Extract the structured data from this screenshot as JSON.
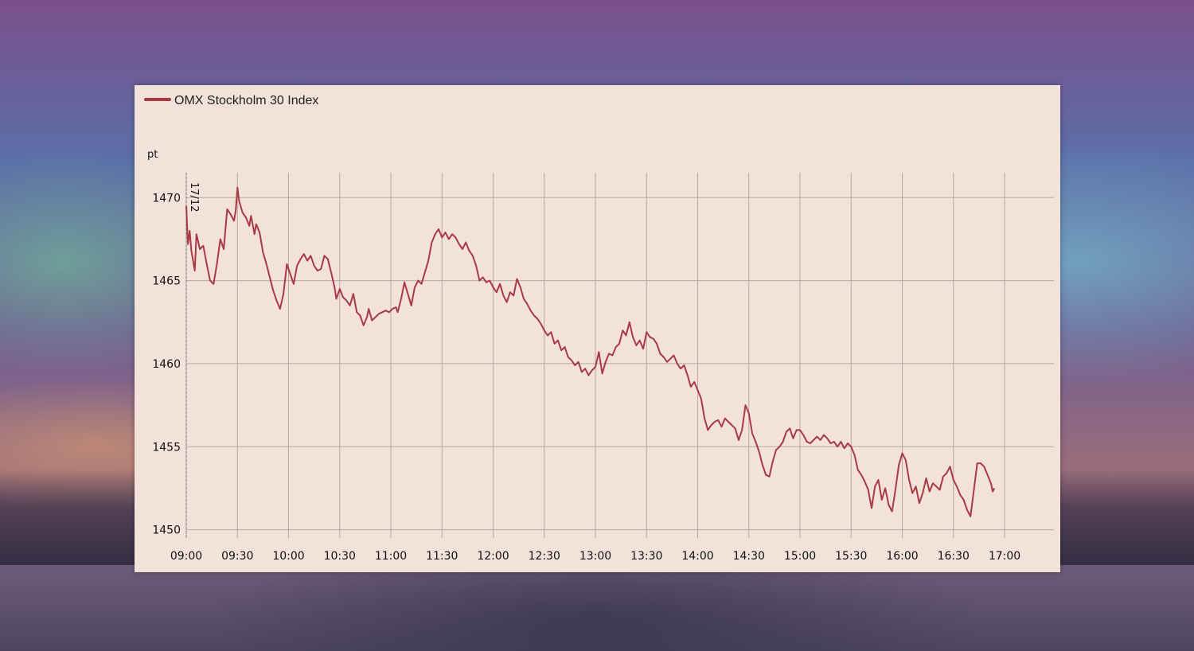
{
  "chart_data": {
    "type": "line",
    "legend": [
      "OMX Stockholm 30 Index"
    ],
    "ylabel": "pt",
    "date_marker": "17/12",
    "x_ticks": [
      "09:00",
      "09:30",
      "10:00",
      "10:30",
      "11:00",
      "11:30",
      "12:00",
      "12:30",
      "13:00",
      "13:30",
      "14:00",
      "14:30",
      "15:00",
      "15:30",
      "16:00",
      "16:30",
      "17:00"
    ],
    "y_ticks": [
      1450,
      1455,
      1460,
      1465,
      1470
    ],
    "ylim": [
      1449.5,
      1471.5
    ],
    "xlim": [
      "09:00",
      "17:00"
    ],
    "grid": true,
    "legend_position": "top-left",
    "line_color": "#a83945",
    "series": [
      {
        "name": "OMX Stockholm 30 Index",
        "points": [
          [
            "09:00",
            1469.5
          ],
          [
            "09:01",
            1467.2
          ],
          [
            "09:02",
            1468.0
          ],
          [
            "09:03",
            1466.8
          ],
          [
            "09:05",
            1465.6
          ],
          [
            "09:06",
            1467.8
          ],
          [
            "09:08",
            1466.9
          ],
          [
            "09:10",
            1467.1
          ],
          [
            "09:12",
            1466.0
          ],
          [
            "09:14",
            1465.0
          ],
          [
            "09:16",
            1464.8
          ],
          [
            "09:18",
            1466.0
          ],
          [
            "09:20",
            1467.5
          ],
          [
            "09:22",
            1466.9
          ],
          [
            "09:24",
            1469.3
          ],
          [
            "09:26",
            1469.0
          ],
          [
            "09:28",
            1468.6
          ],
          [
            "09:29",
            1469.2
          ],
          [
            "09:30",
            1470.6
          ],
          [
            "09:31",
            1469.8
          ],
          [
            "09:33",
            1469.1
          ],
          [
            "09:35",
            1468.8
          ],
          [
            "09:37",
            1468.3
          ],
          [
            "09:38",
            1468.9
          ],
          [
            "09:40",
            1467.8
          ],
          [
            "09:41",
            1468.4
          ],
          [
            "09:43",
            1467.9
          ],
          [
            "09:45",
            1466.7
          ],
          [
            "09:47",
            1466.0
          ],
          [
            "09:49",
            1465.2
          ],
          [
            "09:51",
            1464.4
          ],
          [
            "09:53",
            1463.8
          ],
          [
            "09:55",
            1463.3
          ],
          [
            "09:57",
            1464.2
          ],
          [
            "09:59",
            1466.0
          ],
          [
            "10:01",
            1465.4
          ],
          [
            "10:03",
            1464.8
          ],
          [
            "10:05",
            1465.9
          ],
          [
            "10:07",
            1466.3
          ],
          [
            "10:09",
            1466.6
          ],
          [
            "10:11",
            1466.2
          ],
          [
            "10:13",
            1466.5
          ],
          [
            "10:15",
            1465.9
          ],
          [
            "10:17",
            1465.6
          ],
          [
            "10:19",
            1465.7
          ],
          [
            "10:21",
            1466.5
          ],
          [
            "10:23",
            1466.3
          ],
          [
            "10:25",
            1465.5
          ],
          [
            "10:27",
            1464.6
          ],
          [
            "10:28",
            1463.9
          ],
          [
            "10:30",
            1464.5
          ],
          [
            "10:32",
            1464.0
          ],
          [
            "10:34",
            1463.8
          ],
          [
            "10:36",
            1463.5
          ],
          [
            "10:38",
            1464.2
          ],
          [
            "10:40",
            1463.1
          ],
          [
            "10:42",
            1462.9
          ],
          [
            "10:44",
            1462.3
          ],
          [
            "10:46",
            1462.8
          ],
          [
            "10:47",
            1463.3
          ],
          [
            "10:49",
            1462.6
          ],
          [
            "10:51",
            1462.8
          ],
          [
            "10:53",
            1463.0
          ],
          [
            "10:55",
            1463.1
          ],
          [
            "10:57",
            1463.2
          ],
          [
            "10:59",
            1463.1
          ],
          [
            "11:01",
            1463.3
          ],
          [
            "11:03",
            1463.4
          ],
          [
            "11:04",
            1463.1
          ],
          [
            "11:06",
            1463.9
          ],
          [
            "11:08",
            1464.9
          ],
          [
            "11:10",
            1464.2
          ],
          [
            "11:12",
            1463.5
          ],
          [
            "11:14",
            1464.6
          ],
          [
            "11:16",
            1465.0
          ],
          [
            "11:18",
            1464.8
          ],
          [
            "11:20",
            1465.5
          ],
          [
            "11:22",
            1466.2
          ],
          [
            "11:24",
            1467.3
          ],
          [
            "11:26",
            1467.8
          ],
          [
            "11:28",
            1468.1
          ],
          [
            "11:30",
            1467.6
          ],
          [
            "11:32",
            1467.9
          ],
          [
            "11:34",
            1467.5
          ],
          [
            "11:36",
            1467.8
          ],
          [
            "11:38",
            1467.6
          ],
          [
            "11:40",
            1467.2
          ],
          [
            "11:42",
            1466.9
          ],
          [
            "11:44",
            1467.3
          ],
          [
            "11:46",
            1466.8
          ],
          [
            "11:48",
            1466.5
          ],
          [
            "11:50",
            1465.9
          ],
          [
            "11:52",
            1465.0
          ],
          [
            "11:54",
            1465.2
          ],
          [
            "11:56",
            1464.9
          ],
          [
            "11:58",
            1465.0
          ],
          [
            "12:00",
            1464.6
          ],
          [
            "12:02",
            1464.3
          ],
          [
            "12:04",
            1464.8
          ],
          [
            "12:06",
            1464.1
          ],
          [
            "12:08",
            1463.7
          ],
          [
            "12:10",
            1464.3
          ],
          [
            "12:12",
            1464.1
          ],
          [
            "12:14",
            1465.1
          ],
          [
            "12:16",
            1464.6
          ],
          [
            "12:18",
            1463.9
          ],
          [
            "12:20",
            1463.6
          ],
          [
            "12:22",
            1463.2
          ],
          [
            "12:24",
            1462.9
          ],
          [
            "12:26",
            1462.7
          ],
          [
            "12:28",
            1462.4
          ],
          [
            "12:30",
            1462.0
          ],
          [
            "12:32",
            1461.7
          ],
          [
            "12:34",
            1461.9
          ],
          [
            "12:36",
            1461.2
          ],
          [
            "12:38",
            1461.4
          ],
          [
            "12:40",
            1460.8
          ],
          [
            "12:42",
            1461.0
          ],
          [
            "12:44",
            1460.4
          ],
          [
            "12:46",
            1460.2
          ],
          [
            "12:48",
            1459.9
          ],
          [
            "12:50",
            1460.1
          ],
          [
            "12:52",
            1459.5
          ],
          [
            "12:54",
            1459.7
          ],
          [
            "12:56",
            1459.3
          ],
          [
            "12:58",
            1459.6
          ],
          [
            "13:00",
            1459.8
          ],
          [
            "13:02",
            1460.7
          ],
          [
            "13:04",
            1459.4
          ],
          [
            "13:06",
            1460.1
          ],
          [
            "13:08",
            1460.6
          ],
          [
            "13:10",
            1460.5
          ],
          [
            "13:12",
            1461.0
          ],
          [
            "13:14",
            1461.2
          ],
          [
            "13:16",
            1462.0
          ],
          [
            "13:18",
            1461.7
          ],
          [
            "13:20",
            1462.5
          ],
          [
            "13:22",
            1461.6
          ],
          [
            "13:24",
            1461.1
          ],
          [
            "13:26",
            1461.4
          ],
          [
            "13:28",
            1460.9
          ],
          [
            "13:30",
            1461.9
          ],
          [
            "13:32",
            1461.6
          ],
          [
            "13:34",
            1461.5
          ],
          [
            "13:36",
            1461.2
          ],
          [
            "13:38",
            1460.6
          ],
          [
            "13:40",
            1460.4
          ],
          [
            "13:42",
            1460.1
          ],
          [
            "13:44",
            1460.3
          ],
          [
            "13:46",
            1460.5
          ],
          [
            "13:48",
            1460.0
          ],
          [
            "13:50",
            1459.7
          ],
          [
            "13:52",
            1459.9
          ],
          [
            "13:54",
            1459.3
          ],
          [
            "13:56",
            1458.6
          ],
          [
            "13:58",
            1458.9
          ],
          [
            "14:00",
            1458.4
          ],
          [
            "14:02",
            1457.9
          ],
          [
            "14:04",
            1456.7
          ],
          [
            "14:06",
            1456.0
          ],
          [
            "14:08",
            1456.3
          ],
          [
            "14:10",
            1456.5
          ],
          [
            "14:12",
            1456.6
          ],
          [
            "14:14",
            1456.2
          ],
          [
            "14:16",
            1456.7
          ],
          [
            "14:18",
            1456.5
          ],
          [
            "14:20",
            1456.3
          ],
          [
            "14:22",
            1456.1
          ],
          [
            "14:24",
            1455.4
          ],
          [
            "14:26",
            1456.0
          ],
          [
            "14:28",
            1457.5
          ],
          [
            "14:30",
            1457.0
          ],
          [
            "14:32",
            1455.8
          ],
          [
            "14:34",
            1455.3
          ],
          [
            "14:36",
            1454.7
          ],
          [
            "14:38",
            1453.9
          ],
          [
            "14:40",
            1453.3
          ],
          [
            "14:42",
            1453.2
          ],
          [
            "14:44",
            1454.1
          ],
          [
            "14:46",
            1454.8
          ],
          [
            "14:48",
            1455.0
          ],
          [
            "14:50",
            1455.3
          ],
          [
            "14:52",
            1455.9
          ],
          [
            "14:54",
            1456.1
          ],
          [
            "14:56",
            1455.5
          ],
          [
            "14:58",
            1456.0
          ],
          [
            "15:00",
            1456.0
          ],
          [
            "15:02",
            1455.7
          ],
          [
            "15:04",
            1455.3
          ],
          [
            "15:06",
            1455.2
          ],
          [
            "15:08",
            1455.4
          ],
          [
            "15:10",
            1455.6
          ],
          [
            "15:12",
            1455.4
          ],
          [
            "15:14",
            1455.7
          ],
          [
            "15:16",
            1455.5
          ],
          [
            "15:18",
            1455.2
          ],
          [
            "15:20",
            1455.3
          ],
          [
            "15:22",
            1455.0
          ],
          [
            "15:24",
            1455.3
          ],
          [
            "15:26",
            1454.9
          ],
          [
            "15:28",
            1455.2
          ],
          [
            "15:30",
            1455.0
          ],
          [
            "15:32",
            1454.5
          ],
          [
            "15:34",
            1453.6
          ],
          [
            "15:36",
            1453.3
          ],
          [
            "15:38",
            1452.9
          ],
          [
            "15:40",
            1452.4
          ],
          [
            "15:42",
            1451.3
          ],
          [
            "15:44",
            1452.6
          ],
          [
            "15:46",
            1453.0
          ],
          [
            "15:48",
            1451.8
          ],
          [
            "15:50",
            1452.5
          ],
          [
            "15:52",
            1451.5
          ],
          [
            "15:54",
            1451.1
          ],
          [
            "15:56",
            1452.4
          ],
          [
            "15:58",
            1453.9
          ],
          [
            "16:00",
            1454.6
          ],
          [
            "16:02",
            1454.2
          ],
          [
            "16:04",
            1453.0
          ],
          [
            "16:06",
            1452.2
          ],
          [
            "16:08",
            1452.6
          ],
          [
            "16:10",
            1451.6
          ],
          [
            "16:12",
            1452.2
          ],
          [
            "16:14",
            1453.1
          ],
          [
            "16:16",
            1452.3
          ],
          [
            "16:18",
            1452.8
          ],
          [
            "16:20",
            1452.6
          ],
          [
            "16:22",
            1452.4
          ],
          [
            "16:24",
            1453.2
          ],
          [
            "16:26",
            1453.4
          ],
          [
            "16:28",
            1453.8
          ],
          [
            "16:30",
            1453.0
          ],
          [
            "16:32",
            1452.6
          ],
          [
            "16:34",
            1452.1
          ],
          [
            "16:36",
            1451.8
          ],
          [
            "16:38",
            1451.2
          ],
          [
            "16:40",
            1450.8
          ],
          [
            "16:42",
            1452.4
          ],
          [
            "16:44",
            1454.0
          ],
          [
            "16:46",
            1454.0
          ],
          [
            "16:48",
            1453.8
          ],
          [
            "16:50",
            1453.3
          ],
          [
            "16:52",
            1452.8
          ],
          [
            "16:53",
            1452.3
          ],
          [
            "16:54",
            1452.5
          ]
        ]
      }
    ]
  }
}
